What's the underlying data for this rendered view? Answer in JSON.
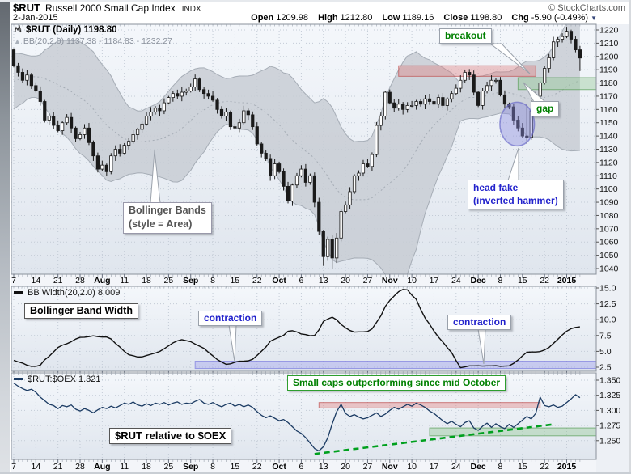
{
  "header": {
    "symbol": "$RUT",
    "name": "Russell 2000 Small Cap Index",
    "exchange": "INDX",
    "date": "2-Jan-2015",
    "copyright": "© StockCharts.com",
    "quote": {
      "open_label": "Open",
      "open": "1209.98",
      "high_label": "High",
      "high": "1212.80",
      "low_label": "Low",
      "low": "1189.16",
      "close_label": "Close",
      "close": "1198.80",
      "chg_label": "Chg",
      "chg": "-5.90 (-0.49%)"
    }
  },
  "main_chart": {
    "legend1": "$RUT (Daily) 1198.80",
    "legend2": "BB(20,2.0) 1137.38 - 1184.83 - 1232.27",
    "annotations": {
      "breakout": "breakout",
      "gap": "gap",
      "head_fake_line1": "head fake",
      "head_fake_line2": "(inverted hammer)",
      "bb_style_line1": "Bollinger Bands",
      "bb_style_line2": "(style =  Area)"
    }
  },
  "bbw_chart": {
    "legend": "BB Width(20,2.0) 8.009",
    "label": "Bollinger Band Width",
    "contraction1": "contraction",
    "contraction2": "contraction"
  },
  "ratio_chart": {
    "legend": "$RUT:$OEX 1.321",
    "label": "$RUT relative to $OEX",
    "banner": "Small caps outperforming since mid October"
  },
  "style_colors": {
    "up_candle": "#ffffff",
    "down_candle": "#1a1a1a",
    "band_fill": "#c7ccd3",
    "band_edge": "#a6adb6",
    "grid": "#c3cbd6",
    "frame": "#8a919b",
    "resistance_fill": "#e07a7a",
    "resistance_edge": "#c05555",
    "support_fill": "#8cc48c",
    "support_edge": "#5ea05e",
    "ellipse_fill": "#8a8ade",
    "ellipse_edge": "#6666c8",
    "bbw_line": "#111111",
    "bbw_band_fill": "#9c9cf0",
    "bbw_band_edge": "#7d7de0",
    "ratio_line": "#1b3b63",
    "trend_green": "#00a01e",
    "axis_text": "#111111",
    "tick_mark": "#6a7280"
  },
  "chart_data": [
    {
      "type": "candlestick",
      "title": "$RUT (Daily)",
      "last_price": 1198.8,
      "x_ticks": [
        "7",
        "14",
        "21",
        "28",
        "Aug",
        "11",
        "18",
        "25",
        "Sep",
        "8",
        "15",
        "22",
        "Oct",
        "6",
        "13",
        "20",
        "27",
        "Nov",
        "10",
        "17",
        "24",
        "Dec",
        "8",
        "15",
        "22",
        "2015"
      ],
      "x_tick_bold": [
        0,
        0,
        0,
        0,
        1,
        0,
        0,
        0,
        1,
        0,
        0,
        0,
        1,
        0,
        0,
        0,
        0,
        1,
        0,
        0,
        0,
        1,
        0,
        0,
        0,
        1
      ],
      "y_ticks": [
        1040,
        1050,
        1060,
        1070,
        1080,
        1090,
        1100,
        1110,
        1120,
        1130,
        1140,
        1150,
        1160,
        1170,
        1180,
        1190,
        1200,
        1210,
        1220
      ],
      "ylim": [
        1036,
        1224
      ],
      "closes": [
        1193,
        1188,
        1182,
        1186,
        1178,
        1174,
        1166,
        1152,
        1155,
        1148,
        1144,
        1150,
        1154,
        1146,
        1138,
        1141,
        1146,
        1135,
        1125,
        1115,
        1118,
        1113,
        1125,
        1130,
        1127,
        1133,
        1136,
        1141,
        1145,
        1149,
        1155,
        1158,
        1161,
        1159,
        1165,
        1169,
        1172,
        1170,
        1173,
        1174,
        1177,
        1183,
        1175,
        1172,
        1170,
        1167,
        1160,
        1155,
        1158,
        1147,
        1146,
        1150,
        1159,
        1156,
        1147,
        1134,
        1127,
        1123,
        1110,
        1119,
        1113,
        1102,
        1091,
        1103,
        1110,
        1115,
        1105,
        1110,
        1090,
        1068,
        1049,
        1062,
        1048,
        1063,
        1083,
        1088,
        1098,
        1110,
        1112,
        1119,
        1117,
        1126,
        1148,
        1155,
        1173,
        1165,
        1161,
        1164,
        1160,
        1163,
        1163,
        1166,
        1164,
        1168,
        1166,
        1164,
        1169,
        1163,
        1168,
        1172,
        1176,
        1182,
        1188,
        1186,
        1173,
        1163,
        1174,
        1178,
        1182,
        1182,
        1171,
        1164,
        1162,
        1152,
        1146,
        1140,
        1139,
        1159,
        1170,
        1180,
        1191,
        1199,
        1211,
        1213,
        1215,
        1219,
        1213,
        1205,
        1198.8
      ],
      "open_rule": "previous_close",
      "wick_overrides": {
        "70": {
          "low": 1042
        },
        "72": {
          "low": 1040
        },
        "116": {
          "high": 1164,
          "low": 1134
        },
        "117": {
          "high": 1167
        },
        "128": {
          "low": 1189
        }
      },
      "bollinger": {
        "period": 20,
        "mult": 2.0,
        "seed_closes": [
          1160,
          1164,
          1168,
          1165,
          1170,
          1174,
          1172,
          1176,
          1179,
          1177,
          1181,
          1184,
          1182,
          1186,
          1188,
          1185,
          1189,
          1192,
          1196,
          1205
        ],
        "display": "1137.38 - 1184.83 - 1232.27"
      },
      "zones": [
        {
          "name": "resistance-zone",
          "color": "red",
          "from_day": 87,
          "to_day": 118,
          "low": 1185,
          "high": 1193
        },
        {
          "name": "gap-support-zone",
          "color": "green",
          "from_day": 114,
          "to_day": 132,
          "low": 1175,
          "high": 1184
        }
      ],
      "ellipse": {
        "center_day": 113.8,
        "center_price": 1149,
        "rx_days": 3.9,
        "ry_price": 16.5
      }
    },
    {
      "type": "line",
      "name": "BB Width(20,2.0)",
      "last_value": 8.009,
      "y_ticks": [
        "2.5",
        "5.0",
        "7.5",
        "10.0",
        "12.5",
        "15.0"
      ],
      "ylim": [
        1.7,
        15.3
      ],
      "values_source": "computed_bollinger_width_of_chart_0",
      "band": {
        "name": "contraction-zone",
        "from_day": 41,
        "to_day": 132,
        "low": 2.3,
        "high": 3.45
      }
    },
    {
      "type": "line",
      "name": "$RUT:$OEX",
      "last_value": 1.321,
      "y_ticks": [
        "1.250",
        "1.275",
        "1.300",
        "1.325",
        "1.350"
      ],
      "ylim": [
        1.219,
        1.361
      ],
      "values": [
        1.345,
        1.34,
        1.336,
        1.333,
        1.335,
        1.33,
        1.322,
        1.316,
        1.31,
        1.308,
        1.303,
        1.308,
        1.306,
        1.309,
        1.302,
        1.299,
        1.303,
        1.3,
        1.296,
        1.301,
        1.305,
        1.303,
        1.307,
        1.304,
        1.308,
        1.312,
        1.31,
        1.314,
        1.309,
        1.307,
        1.311,
        1.308,
        1.312,
        1.31,
        1.313,
        1.309,
        1.312,
        1.314,
        1.31,
        1.312,
        1.311,
        1.315,
        1.318,
        1.312,
        1.31,
        1.313,
        1.309,
        1.306,
        1.31,
        1.312,
        1.307,
        1.31,
        1.306,
        1.309,
        1.305,
        1.298,
        1.292,
        1.288,
        1.291,
        1.287,
        1.283,
        1.285,
        1.28,
        1.273,
        1.266,
        1.262,
        1.255,
        1.246,
        1.237,
        1.233,
        1.24,
        1.255,
        1.278,
        1.298,
        1.31,
        1.295,
        1.29,
        1.293,
        1.289,
        1.286,
        1.288,
        1.292,
        1.296,
        1.29,
        1.294,
        1.3,
        1.305,
        1.302,
        1.306,
        1.31,
        1.307,
        1.312,
        1.309,
        1.305,
        1.299,
        1.295,
        1.289,
        1.283,
        1.278,
        1.282,
        1.277,
        1.273,
        1.28,
        1.283,
        1.271,
        1.267,
        1.274,
        1.279,
        1.272,
        1.278,
        1.273,
        1.27,
        1.277,
        1.272,
        1.278,
        1.284,
        1.29,
        1.286,
        1.295,
        1.322,
        1.308,
        1.306,
        1.309,
        1.305,
        1.307,
        1.313,
        1.319,
        1.326,
        1.321
      ],
      "zones": [
        {
          "name": "ratio-resistance-zone",
          "color": "red",
          "from_day": 69,
          "to_day": 119,
          "low": 1.304,
          "high": 1.313
        },
        {
          "name": "ratio-support-zone",
          "color": "green",
          "from_day": 94,
          "to_day": 132,
          "low": 1.258,
          "high": 1.271
        }
      ],
      "trendline": {
        "from_day": 68,
        "from_value": 1.228,
        "to_day": 122,
        "to_value": 1.277,
        "style": "dashed"
      }
    }
  ]
}
